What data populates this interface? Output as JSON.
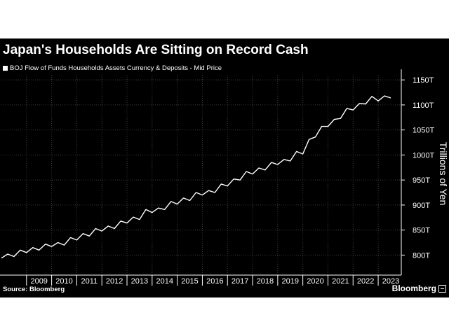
{
  "chart_data": {
    "type": "line",
    "title": "Japan's Households Are Sitting on Record Cash",
    "legend": "BOJ Flow of Funds Households Assets Currency & Deposits - Mid Price",
    "ylabel": "Trillions of Yen",
    "source": "Source: Bloomberg",
    "brand": "Bloomberg",
    "ylim": [
      760,
      1160
    ],
    "xlim": [
      2008.0,
      2023.92
    ],
    "yticks": [
      800,
      850,
      900,
      950,
      1000,
      1050,
      1100,
      1150
    ],
    "ytick_labels": [
      "800T",
      "850T",
      "900T",
      "950T",
      "1000T",
      "1050T",
      "1100T",
      "1150T"
    ],
    "xticks": [
      2009,
      2010,
      2011,
      2012,
      2013,
      2014,
      2015,
      2016,
      2017,
      2018,
      2019,
      2020,
      2021,
      2022,
      2023
    ],
    "series": [
      {
        "x": [
          2008.0,
          2008.25,
          2008.5,
          2008.75,
          2009.0,
          2009.25,
          2009.5,
          2009.75,
          2010.0,
          2010.25,
          2010.5,
          2010.75,
          2011.0,
          2011.25,
          2011.5,
          2011.75,
          2012.0,
          2012.25,
          2012.5,
          2012.75,
          2013.0,
          2013.25,
          2013.5,
          2013.75,
          2014.0,
          2014.25,
          2014.5,
          2014.75,
          2015.0,
          2015.25,
          2015.5,
          2015.75,
          2016.0,
          2016.25,
          2016.5,
          2016.75,
          2017.0,
          2017.25,
          2017.5,
          2017.75,
          2018.0,
          2018.25,
          2018.5,
          2018.75,
          2019.0,
          2019.25,
          2019.5,
          2019.75,
          2020.0,
          2020.25,
          2020.5,
          2020.75,
          2021.0,
          2021.25,
          2021.5,
          2021.75,
          2022.0,
          2022.25,
          2022.5,
          2022.75,
          2023.0,
          2023.25,
          2023.5
        ],
        "y": [
          794,
          802,
          797,
          810,
          805,
          815,
          810,
          822,
          817,
          825,
          820,
          835,
          830,
          843,
          838,
          853,
          848,
          858,
          853,
          868,
          864,
          876,
          871,
          891,
          885,
          894,
          891,
          907,
          902,
          914,
          909,
          925,
          920,
          929,
          925,
          942,
          938,
          952,
          950,
          967,
          962,
          974,
          970,
          985,
          981,
          991,
          988,
          1007,
          1002,
          1031,
          1036,
          1057,
          1057,
          1071,
          1073,
          1093,
          1090,
          1103,
          1102,
          1117,
          1108,
          1118,
          1114
        ]
      }
    ],
    "colors": {
      "background": "#000000",
      "line": "#ffffff",
      "grid": "#3c3c3c",
      "axis": "#ffffff"
    }
  }
}
